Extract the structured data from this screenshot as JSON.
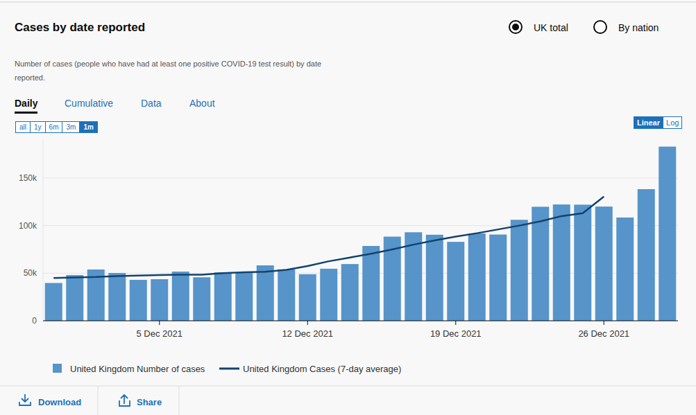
{
  "page": {
    "title": "Cases by date reported",
    "radios": [
      {
        "label": "UK total",
        "selected": true
      },
      {
        "label": "By nation",
        "selected": false
      }
    ],
    "description": "Number of cases (people who have had at least one positive COVID-19 test result) by date reported.",
    "tabs": [
      {
        "label": "Daily",
        "selected": true
      },
      {
        "label": "Cumulative",
        "selected": false
      },
      {
        "label": "Data",
        "selected": false
      },
      {
        "label": "About",
        "selected": false
      }
    ],
    "ranges": [
      {
        "label": "all",
        "selected": false
      },
      {
        "label": "1y",
        "selected": false
      },
      {
        "label": "6m",
        "selected": false
      },
      {
        "label": "3m",
        "selected": false
      },
      {
        "label": "1m",
        "selected": true
      }
    ],
    "scales": [
      {
        "label": "Linear",
        "selected": true
      },
      {
        "label": "Log",
        "selected": false
      }
    ],
    "actions": [
      "Download",
      "Share"
    ]
  },
  "chart_data": {
    "type": "bar",
    "categories": [
      null,
      null,
      null,
      null,
      null,
      "5 Dec 2021",
      null,
      null,
      null,
      null,
      null,
      null,
      "12 Dec 2021",
      null,
      null,
      null,
      null,
      null,
      null,
      "19 Dec 2021",
      null,
      null,
      null,
      null,
      null,
      null,
      "26 Dec 2021",
      null,
      null,
      null
    ],
    "series": [
      {
        "name": "United Kingdom Number of cases",
        "type": "bar",
        "color": "#5694ca",
        "values": [
          39700,
          48000,
          53900,
          50200,
          43000,
          43700,
          51700,
          45700,
          50900,
          51000,
          58200,
          54000,
          48900,
          54700,
          59600,
          78600,
          88400,
          93000,
          90400,
          82900,
          91700,
          90600,
          106100,
          119800,
          122200,
          122000,
          120000,
          108500,
          138300,
          183000
        ]
      },
      {
        "name": "United Kingdom Cases (7-day average)",
        "type": "line",
        "color": "#12436d",
        "values": [
          45000,
          45500,
          46000,
          47000,
          47500,
          48000,
          48500,
          48500,
          50000,
          51000,
          51500,
          53500,
          57500,
          62500,
          66500,
          70500,
          75000,
          80000,
          84500,
          88500,
          92000,
          96000,
          100000,
          104500,
          110000,
          113000,
          130500,
          null,
          null,
          null
        ]
      }
    ],
    "ylim": [
      0,
      190000
    ],
    "yticks": [
      0,
      {
        "value": 50000,
        "label": "50k"
      },
      {
        "value": 100000,
        "label": "100k"
      },
      {
        "value": 150000,
        "label": "150k"
      }
    ],
    "grid": true,
    "legend": "bottom"
  }
}
